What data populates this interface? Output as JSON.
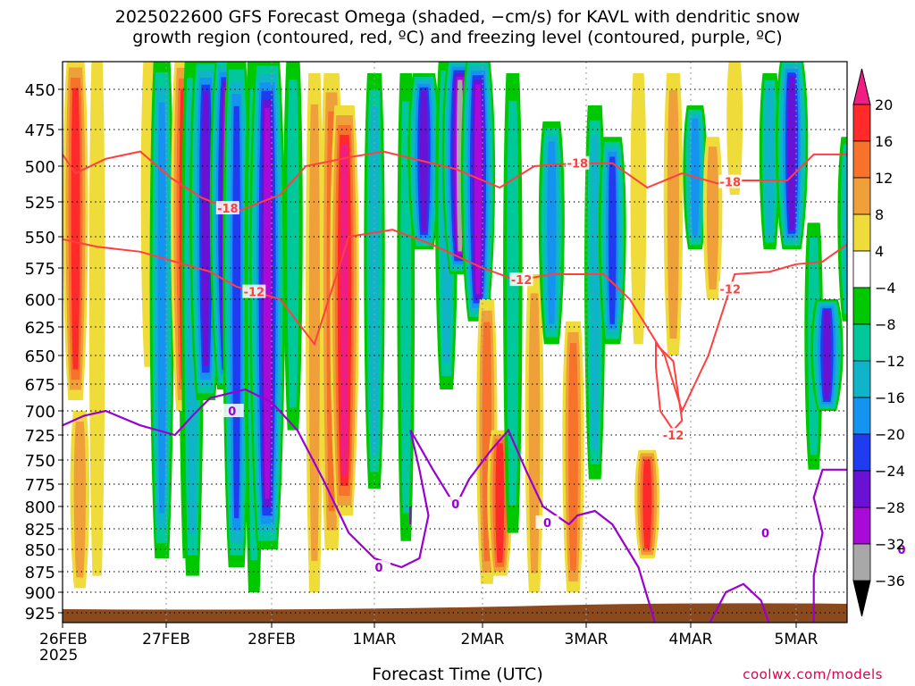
{
  "title_line1": "2025022600 GFS Forecast Omega (shaded, −cm/s) for KAVL with dendritic snow",
  "title_line2": "growth region (contoured, red, ºC) and freezing level (contoured, purple, ºC)",
  "credit": "coolwx.com/models",
  "chart_data": {
    "type": "heatmap",
    "xlabel": "Forecast Time (UTC)",
    "ylabel": "",
    "x_ticks": [
      "26FEB",
      "27FEB",
      "28FEB",
      "1MAR",
      "2MAR",
      "3MAR",
      "4MAR",
      "5MAR"
    ],
    "x_year_label": "2025",
    "x_range_hours": [
      0,
      228
    ],
    "y_ticks": [
      450,
      475,
      500,
      525,
      550,
      575,
      600,
      625,
      650,
      675,
      700,
      725,
      750,
      775,
      800,
      825,
      850,
      875,
      900,
      925
    ],
    "y_range_hpa": [
      425,
      935
    ],
    "grid": true,
    "colorbar": {
      "labels": [
        "20",
        "16",
        "12",
        "8",
        "4",
        "−4",
        "−8",
        "−12",
        "−16",
        "−20",
        "−24",
        "−28",
        "−32",
        "−36"
      ],
      "bands": [
        {
          "range": [
            16,
            20
          ],
          "color": "#ff2a2a"
        },
        {
          "range": [
            12,
            16
          ],
          "color": "#f7722a"
        },
        {
          "range": [
            8,
            12
          ],
          "color": "#f0a03a"
        },
        {
          "range": [
            4,
            8
          ],
          "color": "#efdc3a"
        },
        {
          "range": [
            -4,
            4
          ],
          "color": "#ffffff"
        },
        {
          "range": [
            -8,
            -4
          ],
          "color": "#00c800"
        },
        {
          "range": [
            -12,
            -8
          ],
          "color": "#00c89a"
        },
        {
          "range": [
            -16,
            -12
          ],
          "color": "#10b4c8"
        },
        {
          "range": [
            -20,
            -16
          ],
          "color": "#1493f0"
        },
        {
          "range": [
            -24,
            -20
          ],
          "color": "#1f3cf0"
        },
        {
          "range": [
            -28,
            -24
          ],
          "color": "#6a12d4"
        },
        {
          "range": [
            -32,
            -28
          ],
          "color": "#a80ad8"
        },
        {
          "range": [
            -36,
            -32
          ],
          "color": "#a8a8a8"
        }
      ],
      "overflow_high_color": "#f01e82",
      "overflow_low_color": "#000000"
    },
    "omega_columns": [
      {
        "h": 3,
        "p_top": 430,
        "p_bot": 690,
        "value": 17
      },
      {
        "h": 8,
        "p_top": 430,
        "p_bot": 880,
        "value": 6
      },
      {
        "h": 4,
        "p_top": 700,
        "p_bot": 895,
        "value": 10
      },
      {
        "h": 20,
        "p_top": 430,
        "p_bot": 660,
        "value": 6
      },
      {
        "h": 23,
        "p_top": 430,
        "p_bot": 860,
        "value": -16
      },
      {
        "h": 29,
        "p_top": 430,
        "p_bot": 860,
        "value": -9
      },
      {
        "h": 28,
        "p_top": 430,
        "p_bot": 700,
        "value": 18
      },
      {
        "h": 30,
        "p_top": 430,
        "p_bot": 880,
        "value": -14
      },
      {
        "h": 33,
        "p_top": 430,
        "p_bot": 690,
        "value": -26
      },
      {
        "h": 38,
        "p_top": 430,
        "p_bot": 680,
        "value": -34
      },
      {
        "h": 40,
        "p_top": 430,
        "p_bot": 870,
        "value": -20
      },
      {
        "h": 44,
        "p_top": 430,
        "p_bot": 900,
        "value": -10
      },
      {
        "h": 47,
        "p_top": 430,
        "p_bot": 850,
        "value": -30
      },
      {
        "h": 53,
        "p_top": 430,
        "p_bot": 720,
        "value": -10
      },
      {
        "h": 58,
        "p_top": 440,
        "p_bot": 900,
        "value": 8
      },
      {
        "h": 62,
        "p_top": 440,
        "p_bot": 850,
        "value": 14
      },
      {
        "h": 65,
        "p_top": 460,
        "p_bot": 810,
        "value": 22
      },
      {
        "h": 72,
        "p_top": 440,
        "p_bot": 780,
        "value": -12
      },
      {
        "h": 79,
        "p_top": 440,
        "p_bot": 840,
        "value": -8
      },
      {
        "h": 83,
        "p_top": 440,
        "p_bot": 560,
        "value": -26
      },
      {
        "h": 88,
        "p_top": 430,
        "p_bot": 680,
        "value": -14
      },
      {
        "h": 91,
        "p_top": 430,
        "p_bot": 580,
        "value": -34
      },
      {
        "h": 95,
        "p_top": 430,
        "p_bot": 620,
        "value": -28
      },
      {
        "h": 97,
        "p_top": 600,
        "p_bot": 890,
        "value": 12
      },
      {
        "h": 100,
        "p_top": 720,
        "p_bot": 880,
        "value": 17
      },
      {
        "h": 103,
        "p_top": 440,
        "p_bot": 830,
        "value": -10
      },
      {
        "h": 108,
        "p_top": 580,
        "p_bot": 900,
        "value": 9
      },
      {
        "h": 112,
        "p_top": 470,
        "p_bot": 640,
        "value": -18
      },
      {
        "h": 117,
        "p_top": 620,
        "p_bot": 900,
        "value": 13
      },
      {
        "h": 122,
        "p_top": 460,
        "p_bot": 770,
        "value": -12
      },
      {
        "h": 126,
        "p_top": 480,
        "p_bot": 640,
        "value": -20
      },
      {
        "h": 132,
        "p_top": 440,
        "p_bot": 640,
        "value": 6
      },
      {
        "h": 134,
        "p_top": 740,
        "p_bot": 860,
        "value": 17
      },
      {
        "h": 140,
        "p_top": 440,
        "p_bot": 650,
        "value": 10
      },
      {
        "h": 145,
        "p_top": 460,
        "p_bot": 560,
        "value": -16
      },
      {
        "h": 149,
        "p_top": 480,
        "p_bot": 600,
        "value": 10
      },
      {
        "h": 154,
        "p_top": 430,
        "p_bot": 520,
        "value": 6
      },
      {
        "h": 162,
        "p_top": 440,
        "p_bot": 560,
        "value": -12
      },
      {
        "h": 167,
        "p_top": 430,
        "p_bot": 560,
        "value": -26
      },
      {
        "h": 172,
        "p_top": 540,
        "p_bot": 760,
        "value": -9
      },
      {
        "h": 175,
        "p_top": 600,
        "p_bot": 700,
        "value": -26
      },
      {
        "h": 180,
        "p_top": 480,
        "p_bot": 620,
        "value": -14
      },
      {
        "h": 185,
        "p_top": 600,
        "p_bot": 760,
        "value": -16
      },
      {
        "h": 190,
        "p_top": 450,
        "p_bot": 560,
        "value": -12
      },
      {
        "h": 193,
        "p_top": 640,
        "p_bot": 760,
        "value": -22
      },
      {
        "h": 200,
        "p_top": 440,
        "p_bot": 600,
        "value": -7
      },
      {
        "h": 204,
        "p_top": 680,
        "p_bot": 800,
        "value": -18
      },
      {
        "h": 210,
        "p_top": 430,
        "p_bot": 560,
        "value": -24
      },
      {
        "h": 215,
        "p_top": 560,
        "p_bot": 700,
        "value": -28
      },
      {
        "h": 222,
        "p_top": 430,
        "p_bot": 620,
        "value": -14
      },
      {
        "h": 224,
        "p_top": 740,
        "p_bot": 860,
        "value": 12
      }
    ],
    "minus18_line": [
      [
        0,
        492
      ],
      [
        3,
        505
      ],
      [
        10,
        495
      ],
      [
        18,
        490
      ],
      [
        25,
        508
      ],
      [
        32,
        522
      ],
      [
        40,
        532
      ],
      [
        50,
        520
      ],
      [
        56,
        500
      ],
      [
        66,
        494
      ],
      [
        74,
        490
      ],
      [
        82,
        496
      ],
      [
        90,
        502
      ],
      [
        100,
        515
      ],
      [
        108,
        500
      ],
      [
        118,
        498
      ],
      [
        126,
        498
      ],
      [
        134,
        515
      ],
      [
        142,
        505
      ],
      [
        150,
        512
      ],
      [
        156,
        510
      ],
      [
        166,
        510
      ],
      [
        172,
        492
      ],
      [
        180,
        492
      ],
      [
        188,
        470
      ],
      [
        196,
        472
      ],
      [
        204,
        462
      ],
      [
        212,
        462
      ],
      [
        218,
        470
      ],
      [
        228,
        458
      ]
    ],
    "minus12_line": [
      [
        0,
        552
      ],
      [
        8,
        558
      ],
      [
        18,
        562
      ],
      [
        26,
        570
      ],
      [
        34,
        578
      ],
      [
        40,
        590
      ],
      [
        50,
        600
      ],
      [
        58,
        640
      ],
      [
        66,
        550
      ],
      [
        76,
        545
      ],
      [
        84,
        555
      ],
      [
        96,
        575
      ],
      [
        104,
        585
      ],
      [
        112,
        580
      ],
      [
        124,
        580
      ],
      [
        130,
        600
      ],
      [
        138,
        650
      ],
      [
        142,
        700
      ],
      [
        148,
        650
      ],
      [
        154,
        580
      ],
      [
        162,
        578
      ],
      [
        168,
        572
      ],
      [
        174,
        570
      ],
      [
        180,
        555
      ],
      [
        188,
        540
      ],
      [
        196,
        538
      ],
      [
        202,
        530
      ],
      [
        210,
        528
      ],
      [
        216,
        525
      ],
      [
        222,
        520
      ],
      [
        228,
        522
      ]
    ],
    "minus18_label_hours": [
      38,
      118,
      153,
      203
    ],
    "minus12_label_hours": [
      44,
      105,
      153,
      203
    ],
    "minus12_closed": [
      [
        136,
        640
      ],
      [
        140,
        655
      ],
      [
        142,
        710
      ],
      [
        140,
        720
      ],
      [
        137,
        700
      ],
      [
        136,
        660
      ]
    ],
    "minus12_closed_label": [
      140,
      725
    ],
    "freezing_line": [
      [
        0,
        715
      ],
      [
        5,
        705
      ],
      [
        10,
        700
      ],
      [
        18,
        715
      ],
      [
        26,
        725
      ],
      [
        30,
        705
      ],
      [
        34,
        688
      ],
      [
        42,
        680
      ],
      [
        48,
        692
      ],
      [
        54,
        720
      ],
      [
        60,
        770
      ],
      [
        66,
        830
      ],
      [
        72,
        860
      ],
      [
        78,
        870
      ],
      [
        82,
        860
      ],
      [
        84,
        810
      ],
      [
        82,
        760
      ],
      [
        80,
        720
      ],
      [
        85,
        760
      ],
      [
        90,
        800
      ],
      [
        93,
        770
      ],
      [
        98,
        740
      ],
      [
        102,
        720
      ],
      [
        106,
        760
      ],
      [
        110,
        800
      ],
      [
        116,
        820
      ],
      [
        118,
        810
      ],
      [
        122,
        805
      ],
      [
        126,
        820
      ],
      [
        132,
        870
      ],
      [
        136,
        940
      ]
    ],
    "freezing_extra_segments": [
      [
        [
          80,
          800
        ],
        [
          80,
          820
        ]
      ],
      [
        [
          148,
          940
        ],
        [
          152,
          900
        ],
        [
          156,
          890
        ],
        [
          160,
          910
        ],
        [
          162,
          940
        ]
      ],
      [
        [
          172,
          940
        ],
        [
          172,
          880
        ],
        [
          174,
          830
        ],
        [
          172,
          790
        ],
        [
          174,
          760
        ],
        [
          182,
          760
        ],
        [
          184,
          800
        ],
        [
          184,
          830
        ],
        [
          186,
          840
        ]
      ],
      [
        [
          180,
          860
        ],
        [
          182,
          830
        ],
        [
          188,
          820
        ],
        [
          190,
          850
        ],
        [
          188,
          870
        ],
        [
          192,
          860
        ],
        [
          194,
          840
        ]
      ],
      [
        [
          198,
          760
        ],
        [
          200,
          740
        ],
        [
          208,
          740
        ],
        [
          212,
          720
        ],
        [
          220,
          700
        ],
        [
          224,
          670
        ],
        [
          230,
          665
        ],
        [
          236,
          690
        ],
        [
          244,
          690
        ]
      ]
    ],
    "freezing_label_points": [
      [
        39,
        700
      ],
      [
        73,
        870
      ],
      [
        90,
        797
      ],
      [
        111,
        818
      ],
      [
        161,
        830
      ],
      [
        184,
        857
      ],
      [
        192,
        850
      ],
      [
        211,
        715
      ]
    ],
    "contour_label_minus18": "-18",
    "contour_label_minus12": "-12",
    "contour_label_zero": "0",
    "terrain_surface_p": 925,
    "terrain_color": "#8b4a1e",
    "minus18_color": "#ff4040",
    "minus12_color": "#ff4040",
    "freezing_color": "#9a00d0"
  }
}
